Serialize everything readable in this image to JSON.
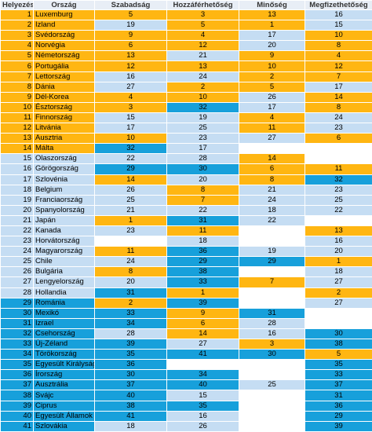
{
  "table": {
    "header": [
      "Helyezés",
      "Ország",
      "Szabadság",
      "Hozzáférhetőség",
      "Minőség",
      "Megfizethetőség"
    ],
    "rows": [
      [
        1,
        "Luxemburg",
        5,
        3,
        13,
        16
      ],
      [
        2,
        "Izland",
        19,
        5,
        1,
        15
      ],
      [
        3,
        "Svédország",
        9,
        4,
        17,
        10
      ],
      [
        4,
        "Norvégia",
        6,
        12,
        20,
        8
      ],
      [
        5,
        "Németország",
        13,
        21,
        9,
        4
      ],
      [
        6,
        "Portugália",
        12,
        13,
        10,
        12
      ],
      [
        7,
        "Lettország",
        16,
        24,
        2,
        7
      ],
      [
        8,
        "Dánia",
        27,
        2,
        5,
        17
      ],
      [
        9,
        "Dél-Korea",
        4,
        10,
        26,
        14
      ],
      [
        10,
        "Észtország",
        3,
        32,
        17,
        8
      ],
      [
        11,
        "Finnország",
        15,
        19,
        4,
        24
      ],
      [
        12,
        "Litvánia",
        17,
        25,
        11,
        23
      ],
      [
        13,
        "Ausztria",
        10,
        23,
        27,
        6
      ],
      [
        14,
        "Málta",
        32,
        17,
        null,
        null
      ],
      [
        15,
        "Olaszország",
        22,
        28,
        14,
        null
      ],
      [
        16,
        "Görögország",
        29,
        30,
        6,
        11
      ],
      [
        17,
        "Szlovénia",
        14,
        20,
        8,
        32
      ],
      [
        18,
        "Belgium",
        26,
        8,
        21,
        23
      ],
      [
        19,
        "Franciaország",
        25,
        7,
        24,
        25
      ],
      [
        20,
        "Spanyolország",
        21,
        22,
        18,
        22
      ],
      [
        21,
        "Japán",
        1,
        31,
        22,
        null
      ],
      [
        22,
        "Kanada",
        23,
        11,
        null,
        13
      ],
      [
        23,
        "Horvátország",
        null,
        18,
        null,
        16
      ],
      [
        24,
        "Magyarország",
        11,
        36,
        19,
        20
      ],
      [
        25,
        "Chile",
        24,
        29,
        29,
        1
      ],
      [
        26,
        "Bulgária",
        8,
        38,
        null,
        18
      ],
      [
        27,
        "Lengyelország",
        20,
        33,
        7,
        27
      ],
      [
        28,
        "Hollandia",
        31,
        1,
        null,
        2
      ],
      [
        29,
        "Románia",
        2,
        39,
        null,
        27
      ],
      [
        30,
        "Mexikó",
        33,
        9,
        31,
        null
      ],
      [
        31,
        "Izrael",
        34,
        6,
        28,
        null
      ],
      [
        32,
        "Csehország",
        28,
        14,
        16,
        30
      ],
      [
        33,
        "Új-Zéland",
        39,
        27,
        3,
        38
      ],
      [
        34,
        "Törökország",
        35,
        41,
        30,
        5
      ],
      [
        35,
        "Egyesült Királyság",
        36,
        null,
        null,
        35
      ],
      [
        36,
        "Írország",
        30,
        34,
        null,
        33
      ],
      [
        37,
        "Ausztrália",
        37,
        40,
        25,
        37
      ],
      [
        38,
        "Svájc",
        40,
        15,
        null,
        31
      ],
      [
        39,
        "Ciprus",
        38,
        35,
        null,
        36
      ],
      [
        40,
        "Egyesült Államok",
        41,
        16,
        null,
        29
      ],
      [
        41,
        "Szlovákia",
        18,
        26,
        null,
        39
      ]
    ]
  }
}
